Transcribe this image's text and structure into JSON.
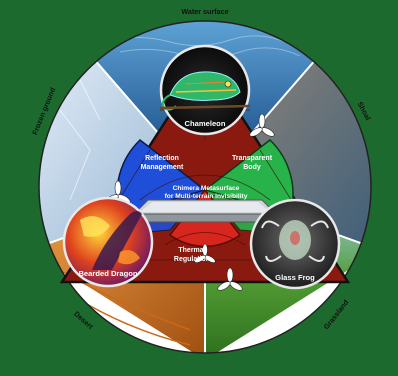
{
  "terrains": {
    "water_surface": "Water surface",
    "shoal": "Shoal",
    "grassland": "Grassland",
    "desert": "Desert",
    "frozen_ground": "Frozen ground"
  },
  "mechanisms": {
    "reflection": [
      "Reflection",
      "Management"
    ],
    "transparent": [
      "Transparent",
      "Body"
    ],
    "thermal": [
      "Thermal",
      "Regulation"
    ]
  },
  "animals": {
    "chameleon": "Chameleon",
    "bearded_dragon": "Bearded Dragon",
    "glass_frog": "Glass Frog"
  },
  "center": {
    "line1": "Chimera Metasurface",
    "line2": "for Multi-terrain Invisibility"
  },
  "colors": {
    "frame": "#1d6a2f",
    "reflection": "#1f4fd8",
    "transparent": "#27b34a",
    "thermal": "#d7261e",
    "triangle_frame": "#8a1a10"
  }
}
